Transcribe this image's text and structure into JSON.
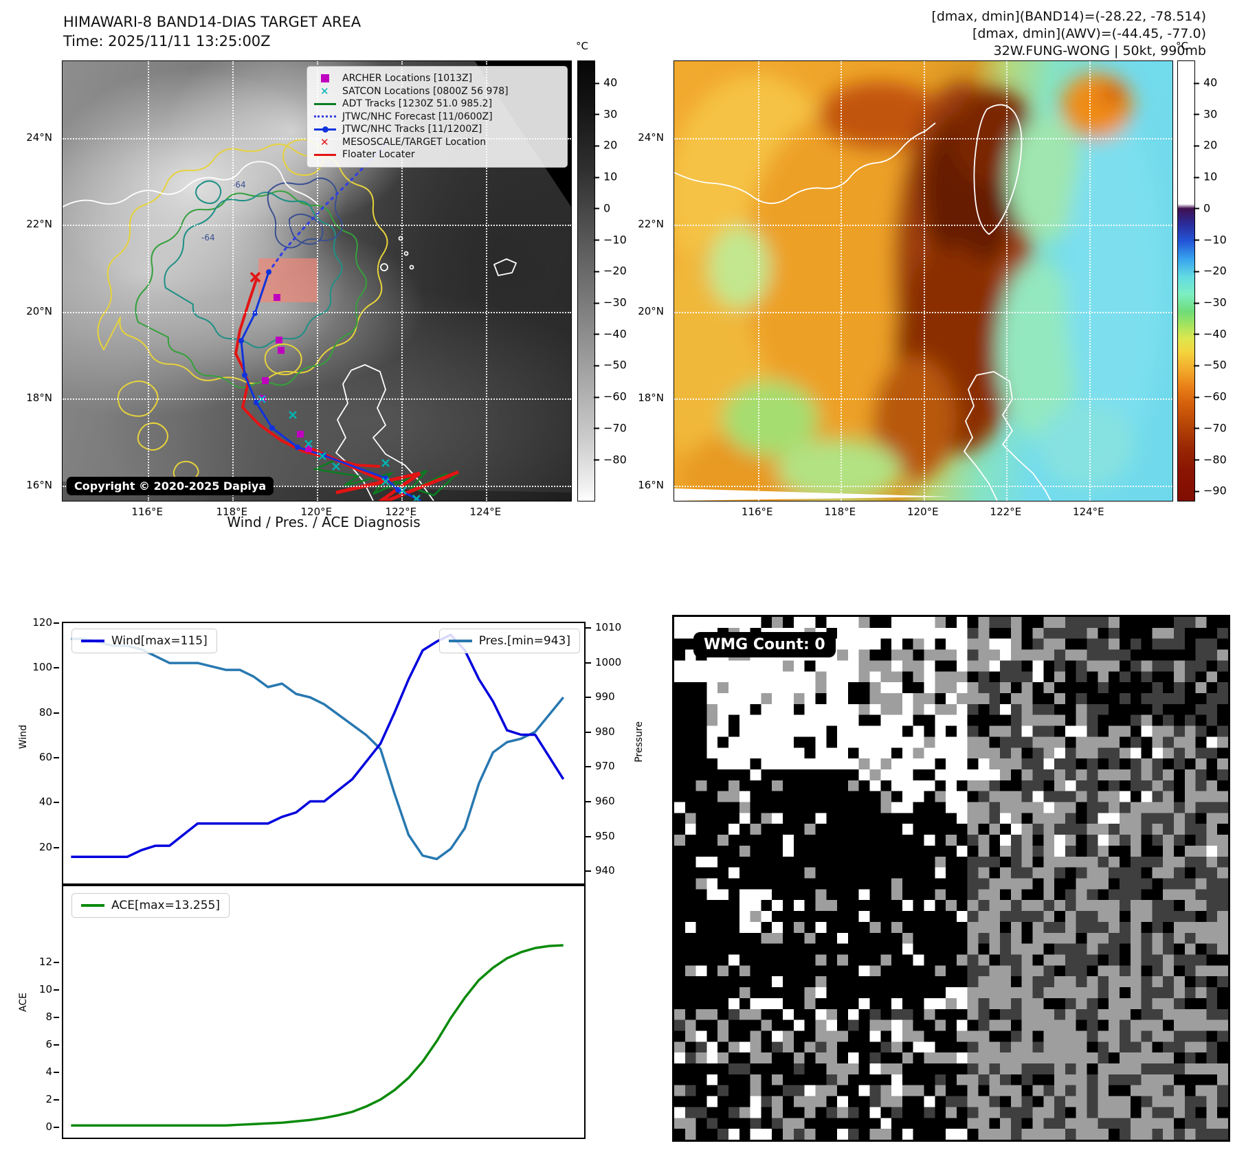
{
  "panel_band14": {
    "title_line1": "HIMAWARI-8 BAND14-DIAS TARGET AREA",
    "title_line2": "Time: 2025/11/11 13:25:00Z",
    "copyright": "Copyright © 2020-2025 Dapiya",
    "legend": [
      {
        "label": "ARCHER Locations [1013Z]",
        "marker": "square",
        "color": "#bf00bf"
      },
      {
        "label": "SATCON Locations [0800Z 56 978]",
        "marker": "x",
        "color": "#00b2b2"
      },
      {
        "label": "ADT Tracks [1230Z 51.0 985.2]",
        "marker": "line",
        "color": "#0a7d20"
      },
      {
        "label": "JTWC/NHC Forecast [11/0600Z]",
        "marker": "dotted",
        "color": "#3340e0"
      },
      {
        "label": "JTWC/NHC Tracks [11/1200Z]",
        "marker": "line-dot",
        "color": "#1133dd"
      },
      {
        "label": "MESOSCALE/TARGET Location",
        "marker": "x",
        "color": "#e31414"
      },
      {
        "label": "Floater Locater",
        "marker": "line",
        "color": "#e31414"
      }
    ],
    "contour_labels": [
      "-64",
      "-64"
    ],
    "colorbar": {
      "unit": "°C",
      "range": [
        47,
        -93
      ],
      "ticks": [
        "40",
        "30",
        "20",
        "10",
        "0",
        "−10",
        "−20",
        "−30",
        "−40",
        "−50",
        "−60",
        "−70",
        "−80"
      ]
    },
    "geo": {
      "lon_range": [
        113.98,
        126.01
      ],
      "lat_range": [
        25.77,
        15.65
      ],
      "lon_ticks": [
        "116°E",
        "118°E",
        "120°E",
        "122°E",
        "124°E"
      ],
      "lat_ticks": [
        "24°N",
        "22°N",
        "20°N",
        "18°N",
        "16°N"
      ]
    }
  },
  "panel_awv": {
    "header_line1": "[dmax, dmin](BAND14)=(-28.22, -78.514)",
    "header_line2": "[dmax, dmin](AWV)=(-44.45, -77.0)",
    "header_line3": "32W.FUNG-WONG | 50kt, 990mb",
    "colorbar": {
      "unit": "°C",
      "range": [
        47,
        -93
      ],
      "ticks": [
        "40",
        "30",
        "20",
        "10",
        "0",
        "−10",
        "−20",
        "−30",
        "−40",
        "−50",
        "−60",
        "−70",
        "−80",
        "−90"
      ]
    },
    "geo": {
      "lon_range": [
        113.98,
        126.01
      ],
      "lat_range": [
        25.77,
        15.65
      ],
      "lon_ticks": [
        "116°E",
        "118°E",
        "120°E",
        "122°E",
        "124°E"
      ],
      "lat_ticks": [
        "24°N",
        "22°N",
        "20°N",
        "18°N",
        "16°N"
      ]
    }
  },
  "panel_wmg": {
    "badge": "WMG Count: 0"
  },
  "chart_data": [
    {
      "type": "line",
      "title": "Wind / Pres. / ACE Diagnosis",
      "x_axis": {
        "tick_labels_visible": false
      },
      "series": [
        {
          "name": "Wind[max=115]",
          "yaxis": "left",
          "color": "#0000dd",
          "values": [
            15,
            15,
            15,
            15,
            15,
            18,
            20,
            20,
            25,
            30,
            30,
            30,
            30,
            30,
            30,
            33,
            35,
            40,
            40,
            45,
            50,
            58,
            66,
            80,
            95,
            108,
            112,
            115,
            108,
            95,
            85,
            72,
            70,
            70,
            60,
            50
          ]
        },
        {
          "name": "Pres.[min=943]",
          "yaxis": "right",
          "color": "#2878b0",
          "values": [
            1007,
            1007,
            1006,
            1005,
            1005,
            1004,
            1002,
            1000,
            1000,
            1000,
            999,
            998,
            998,
            996,
            993,
            994,
            991,
            990,
            988,
            985,
            982,
            979,
            975,
            962,
            950,
            944,
            943,
            946,
            952,
            965,
            974,
            977,
            978,
            980,
            985,
            990
          ]
        }
      ],
      "left_axis": {
        "label": "Wind",
        "ticks": [
          120,
          100,
          80,
          60,
          40,
          20
        ],
        "range": [
          120.3,
          3.0
        ]
      },
      "right_axis": {
        "label": "Pressure",
        "ticks": [
          1010,
          1000,
          990,
          980,
          970,
          960,
          950,
          940
        ],
        "range": [
          1011.6,
          935.9
        ]
      },
      "legend_position": [
        "upper-left",
        "upper-right"
      ],
      "grid": false
    },
    {
      "type": "line",
      "series": [
        {
          "name": "ACE[max=13.255]",
          "color": "#0a8a0a",
          "values": [
            0,
            0,
            0,
            0,
            0,
            0,
            0,
            0,
            0,
            0,
            0,
            0,
            0.05,
            0.1,
            0.15,
            0.2,
            0.3,
            0.4,
            0.55,
            0.75,
            1.0,
            1.4,
            1.9,
            2.6,
            3.5,
            4.7,
            6.2,
            7.9,
            9.4,
            10.7,
            11.6,
            12.3,
            12.75,
            13.05,
            13.2,
            13.255
          ]
        }
      ],
      "left_axis": {
        "label": "ACE",
        "ticks": [
          12,
          10,
          8,
          6,
          4,
          2,
          0
        ],
        "range": [
          17.6,
          -0.9
        ]
      },
      "legend_position": [
        "upper-left"
      ],
      "grid": false
    }
  ]
}
